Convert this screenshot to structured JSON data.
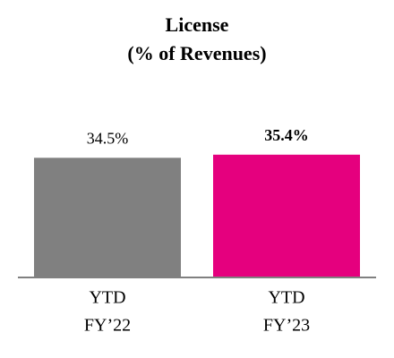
{
  "chart_data": {
    "type": "bar",
    "title": "License",
    "subtitle": "(% of Revenues)",
    "categories": [
      [
        "YTD",
        "FY’22"
      ],
      [
        "YTD",
        "FY’23"
      ]
    ],
    "values": [
      34.5,
      35.4
    ],
    "value_labels": [
      "34.5%",
      "35.4%"
    ],
    "colors": [
      "#808080",
      "#e5007e"
    ],
    "bold_labels": [
      false,
      true
    ],
    "ylim": [
      0,
      40
    ]
  }
}
